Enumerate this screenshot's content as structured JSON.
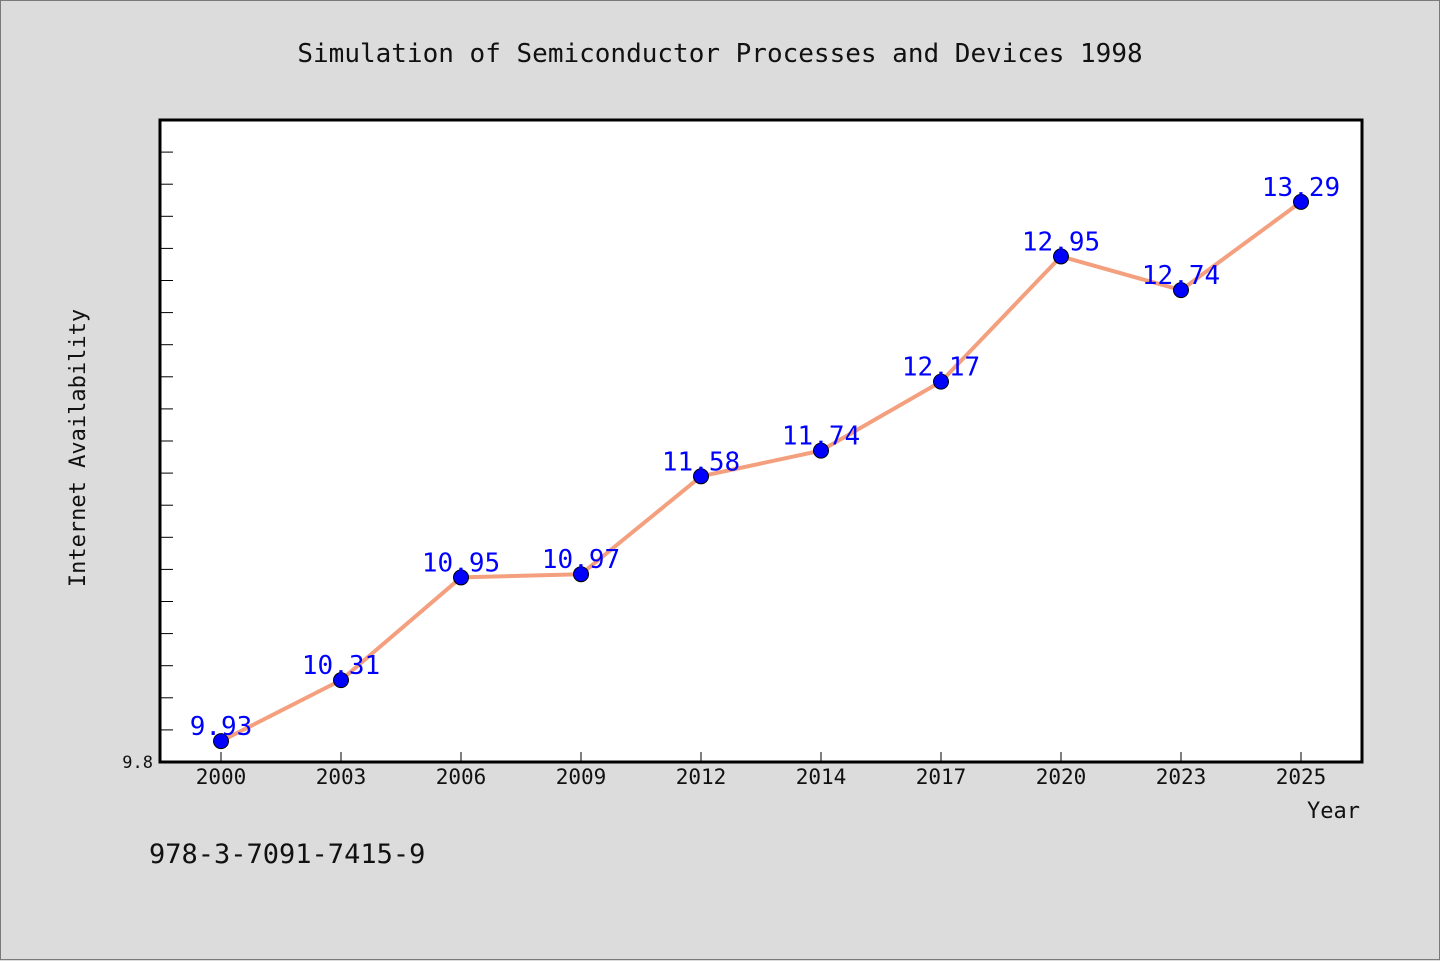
{
  "chart_data": {
    "type": "line",
    "title": "Simulation of Semiconductor Processes and Devices 1998",
    "xlabel": "Year",
    "ylabel": "Internet Availability",
    "categories": [
      "2000",
      "2003",
      "2006",
      "2009",
      "2012",
      "2014",
      "2017",
      "2020",
      "2023",
      "2025"
    ],
    "series": [
      {
        "values": [
          9.93,
          10.31,
          10.95,
          10.97,
          11.58,
          11.74,
          12.17,
          12.95,
          12.74,
          13.29
        ],
        "labels": [
          "9.93",
          "10.31",
          "10.95",
          "10.97",
          "11.58",
          "11.74",
          "12.17",
          "12.95",
          "12.74",
          "13.29"
        ],
        "line_color": "#f4a07f",
        "marker_color": "#0000ff"
      }
    ],
    "ylim": [
      9.8,
      13.8
    ],
    "y_tick_labels": [
      "9.8"
    ],
    "grid": false,
    "legend": "none",
    "background": "#ffffff"
  },
  "footer": {
    "isbn": "978-3-7091-7415-9"
  }
}
